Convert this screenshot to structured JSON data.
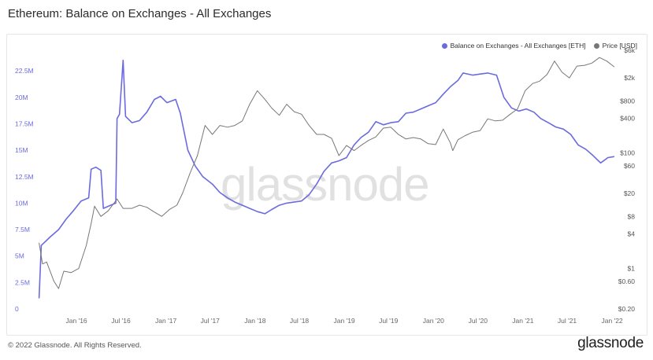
{
  "title": "Ethereum: Balance on Exchanges - All Exchanges",
  "footer": {
    "copyright": "© 2022 Glassnode. All Rights Reserved.",
    "brand": "glassnode",
    "watermark": "glassnode"
  },
  "legend": [
    {
      "label": "Balance on Exchanges - All Exchanges [ETH]",
      "color": "#6b6bdf"
    },
    {
      "label": "Price [USD]",
      "color": "#777777"
    }
  ],
  "chart_data": {
    "type": "line",
    "x_ticks": [
      "Jan '16",
      "Jul '16",
      "Jan '17",
      "Jul '17",
      "Jan '18",
      "Jul '18",
      "Jan '19",
      "Jul '19",
      "Jan '20",
      "Jul '20",
      "Jan '21",
      "Jul '21",
      "Jan '22"
    ],
    "y_left_ticks": [
      "0",
      "2.5M",
      "5M",
      "7.5M",
      "10M",
      "12.5M",
      "15M",
      "17.5M",
      "20M",
      "22.5M"
    ],
    "y_left_range": [
      0,
      24000000
    ],
    "y_right_ticks": [
      "$0.20",
      "$0.60",
      "$1",
      "$4",
      "$8",
      "$20",
      "$60",
      "$100",
      "$400",
      "$800",
      "$2k",
      "$6k"
    ],
    "y_right_scale": "log",
    "y_right_range": [
      0.2,
      6000
    ],
    "series": [
      {
        "name": "Balance on Exchanges - All Exchanges [ETH]",
        "axis": "left",
        "color": "#6b6bdf",
        "points": [
          [
            "2015-08-01",
            1000000
          ],
          [
            "2015-08-10",
            6000000
          ],
          [
            "2015-09-15",
            6800000
          ],
          [
            "2015-10-20",
            7500000
          ],
          [
            "2015-11-20",
            8500000
          ],
          [
            "2015-12-20",
            9300000
          ],
          [
            "2016-01-20",
            10200000
          ],
          [
            "2016-02-20",
            10500000
          ],
          [
            "2016-03-01",
            13200000
          ],
          [
            "2016-03-20",
            13400000
          ],
          [
            "2016-04-10",
            13100000
          ],
          [
            "2016-04-20",
            9500000
          ],
          [
            "2016-05-20",
            9800000
          ],
          [
            "2016-06-10",
            10000000
          ],
          [
            "2016-06-15",
            18000000
          ],
          [
            "2016-06-25",
            18400000
          ],
          [
            "2016-07-10",
            23500000
          ],
          [
            "2016-07-20",
            18200000
          ],
          [
            "2016-08-15",
            17600000
          ],
          [
            "2016-09-15",
            17800000
          ],
          [
            "2016-10-15",
            18600000
          ],
          [
            "2016-11-15",
            19800000
          ],
          [
            "2016-12-10",
            20100000
          ],
          [
            "2017-01-05",
            19500000
          ],
          [
            "2017-02-10",
            19800000
          ],
          [
            "2017-03-01",
            18500000
          ],
          [
            "2017-04-01",
            15000000
          ],
          [
            "2017-05-01",
            13500000
          ],
          [
            "2017-06-01",
            12500000
          ],
          [
            "2017-07-10",
            11800000
          ],
          [
            "2017-08-10",
            11000000
          ],
          [
            "2017-09-10",
            10500000
          ],
          [
            "2017-10-10",
            10100000
          ],
          [
            "2017-11-10",
            9800000
          ],
          [
            "2017-12-10",
            9500000
          ],
          [
            "2018-01-10",
            9200000
          ],
          [
            "2018-02-10",
            9000000
          ],
          [
            "2018-03-10",
            9400000
          ],
          [
            "2018-04-10",
            9800000
          ],
          [
            "2018-05-10",
            10000000
          ],
          [
            "2018-06-10",
            10100000
          ],
          [
            "2018-07-10",
            10200000
          ],
          [
            "2018-08-10",
            10800000
          ],
          [
            "2018-09-10",
            11800000
          ],
          [
            "2018-10-10",
            13000000
          ],
          [
            "2018-11-10",
            13800000
          ],
          [
            "2018-12-10",
            14000000
          ],
          [
            "2019-01-10",
            14300000
          ],
          [
            "2019-02-10",
            15500000
          ],
          [
            "2019-03-10",
            16200000
          ],
          [
            "2019-04-10",
            16700000
          ],
          [
            "2019-05-10",
            17700000
          ],
          [
            "2019-06-10",
            17400000
          ],
          [
            "2019-07-10",
            17600000
          ],
          [
            "2019-08-10",
            17700000
          ],
          [
            "2019-09-10",
            18500000
          ],
          [
            "2019-10-10",
            18600000
          ],
          [
            "2019-11-10",
            18900000
          ],
          [
            "2019-12-10",
            19200000
          ],
          [
            "2020-01-10",
            19500000
          ],
          [
            "2020-02-10",
            20300000
          ],
          [
            "2020-03-10",
            21000000
          ],
          [
            "2020-04-10",
            21600000
          ],
          [
            "2020-05-01",
            22300000
          ],
          [
            "2020-06-10",
            22100000
          ],
          [
            "2020-07-10",
            22200000
          ],
          [
            "2020-08-10",
            22300000
          ],
          [
            "2020-09-15",
            22100000
          ],
          [
            "2020-10-15",
            20000000
          ],
          [
            "2020-11-15",
            19000000
          ],
          [
            "2020-12-15",
            18700000
          ],
          [
            "2021-01-15",
            18900000
          ],
          [
            "2021-02-15",
            18600000
          ],
          [
            "2021-03-15",
            18000000
          ],
          [
            "2021-04-15",
            17600000
          ],
          [
            "2021-05-15",
            17200000
          ],
          [
            "2021-06-15",
            17000000
          ],
          [
            "2021-07-15",
            16500000
          ],
          [
            "2021-08-15",
            15500000
          ],
          [
            "2021-09-15",
            15100000
          ],
          [
            "2021-10-15",
            14500000
          ],
          [
            "2021-11-15",
            13800000
          ],
          [
            "2021-12-15",
            14300000
          ],
          [
            "2022-01-10",
            14400000
          ]
        ]
      },
      {
        "name": "Price [USD]",
        "axis": "right",
        "color": "#777777",
        "points": [
          [
            "2015-08-01",
            2.8
          ],
          [
            "2015-08-15",
            1.2
          ],
          [
            "2015-09-01",
            1.3
          ],
          [
            "2015-10-01",
            0.6
          ],
          [
            "2015-10-20",
            0.45
          ],
          [
            "2015-11-10",
            0.9
          ],
          [
            "2015-12-10",
            0.85
          ],
          [
            "2016-01-10",
            1.0
          ],
          [
            "2016-02-10",
            2.5
          ],
          [
            "2016-03-01",
            6.0
          ],
          [
            "2016-03-15",
            12
          ],
          [
            "2016-04-10",
            8
          ],
          [
            "2016-05-10",
            10
          ],
          [
            "2016-06-15",
            16
          ],
          [
            "2016-07-10",
            11
          ],
          [
            "2016-08-15",
            11
          ],
          [
            "2016-09-15",
            12.5
          ],
          [
            "2016-10-15",
            11.5
          ],
          [
            "2016-11-15",
            9.5
          ],
          [
            "2016-12-15",
            8
          ],
          [
            "2017-01-15",
            10.5
          ],
          [
            "2017-02-15",
            12.5
          ],
          [
            "2017-03-10",
            20
          ],
          [
            "2017-04-10",
            45
          ],
          [
            "2017-05-10",
            90
          ],
          [
            "2017-06-10",
            300
          ],
          [
            "2017-07-10",
            210
          ],
          [
            "2017-08-10",
            300
          ],
          [
            "2017-09-10",
            280
          ],
          [
            "2017-10-10",
            300
          ],
          [
            "2017-11-10",
            360
          ],
          [
            "2017-12-10",
            700
          ],
          [
            "2018-01-10",
            1200
          ],
          [
            "2018-02-10",
            850
          ],
          [
            "2018-03-10",
            600
          ],
          [
            "2018-04-10",
            450
          ],
          [
            "2018-05-10",
            700
          ],
          [
            "2018-06-10",
            520
          ],
          [
            "2018-07-10",
            470
          ],
          [
            "2018-08-10",
            300
          ],
          [
            "2018-09-10",
            210
          ],
          [
            "2018-10-10",
            210
          ],
          [
            "2018-11-10",
            180
          ],
          [
            "2018-12-10",
            90
          ],
          [
            "2019-01-10",
            135
          ],
          [
            "2019-02-10",
            110
          ],
          [
            "2019-03-10",
            135
          ],
          [
            "2019-04-10",
            165
          ],
          [
            "2019-05-10",
            190
          ],
          [
            "2019-06-10",
            270
          ],
          [
            "2019-07-10",
            280
          ],
          [
            "2019-08-10",
            210
          ],
          [
            "2019-09-10",
            175
          ],
          [
            "2019-10-10",
            185
          ],
          [
            "2019-11-10",
            175
          ],
          [
            "2019-12-10",
            145
          ],
          [
            "2020-01-10",
            140
          ],
          [
            "2020-02-10",
            260
          ],
          [
            "2020-03-10",
            150
          ],
          [
            "2020-03-20",
            110
          ],
          [
            "2020-04-10",
            170
          ],
          [
            "2020-05-10",
            200
          ],
          [
            "2020-06-10",
            230
          ],
          [
            "2020-07-10",
            245
          ],
          [
            "2020-08-10",
            390
          ],
          [
            "2020-09-10",
            360
          ],
          [
            "2020-10-10",
            370
          ],
          [
            "2020-11-10",
            470
          ],
          [
            "2020-12-10",
            580
          ],
          [
            "2021-01-10",
            1200
          ],
          [
            "2021-02-10",
            1600
          ],
          [
            "2021-03-10",
            1750
          ],
          [
            "2021-04-10",
            2300
          ],
          [
            "2021-05-10",
            3900
          ],
          [
            "2021-06-10",
            2500
          ],
          [
            "2021-07-10",
            2000
          ],
          [
            "2021-08-10",
            3200
          ],
          [
            "2021-09-10",
            3300
          ],
          [
            "2021-10-10",
            3600
          ],
          [
            "2021-11-10",
            4500
          ],
          [
            "2021-12-10",
            3900
          ],
          [
            "2022-01-10",
            3100
          ]
        ]
      }
    ]
  }
}
